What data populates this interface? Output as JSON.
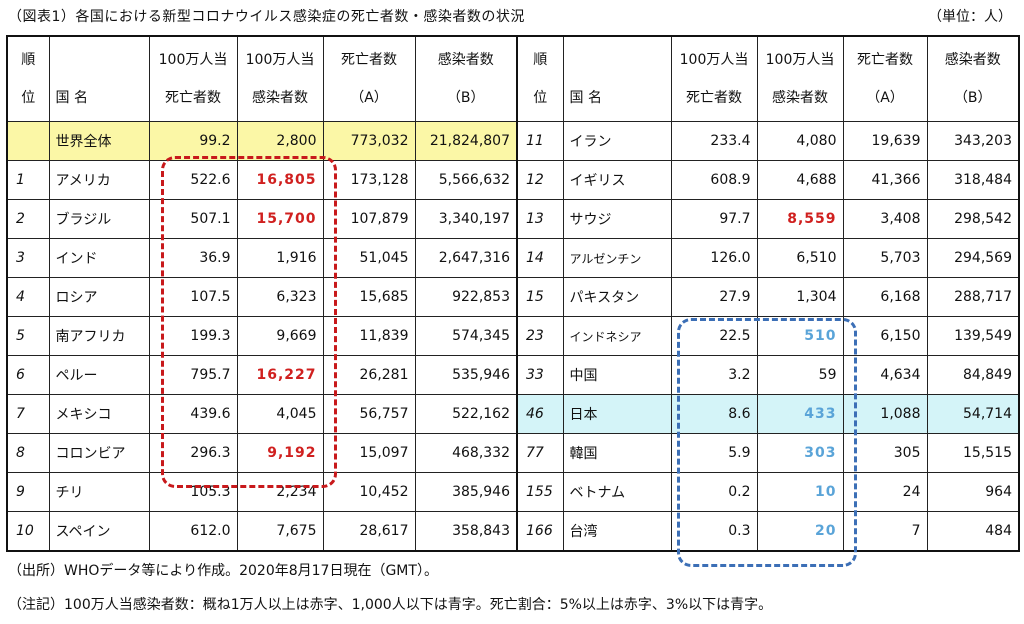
{
  "title": "（図表1）各国における新型コロナウイルス感染症の死亡者数・感染者数の状況",
  "unit": "（単位：人）",
  "headers": {
    "rank": [
      "順",
      "位"
    ],
    "country": "国  名",
    "deaths_per_million": [
      "100万人当",
      "死亡者数"
    ],
    "cases_per_million": [
      "100万人当",
      "感染者数"
    ],
    "deaths": [
      "死亡者数",
      "（A）"
    ],
    "cases": [
      "感染者数",
      "（B）"
    ]
  },
  "colors": {
    "red_text": "#d0201f",
    "blue_text": "#5aa4d8",
    "world_bg": "#fbf7a6",
    "japan_bg": "#d4f4f8"
  },
  "left_rows": [
    {
      "rank": "",
      "country": "世界全体",
      "dpm": "99.2",
      "cpm": "2,800",
      "deaths": "773,032",
      "cases": "21,824,807",
      "cpm_color": "",
      "highlight": "world"
    },
    {
      "rank": "1",
      "country": "アメリカ",
      "dpm": "522.6",
      "cpm": "16,805",
      "deaths": "173,128",
      "cases": "5,566,632",
      "cpm_color": "red",
      "highlight": ""
    },
    {
      "rank": "2",
      "country": "ブラジル",
      "dpm": "507.1",
      "cpm": "15,700",
      "deaths": "107,879",
      "cases": "3,340,197",
      "cpm_color": "red",
      "highlight": ""
    },
    {
      "rank": "3",
      "country": "インド",
      "dpm": "36.9",
      "cpm": "1,916",
      "deaths": "51,045",
      "cases": "2,647,316",
      "cpm_color": "",
      "highlight": ""
    },
    {
      "rank": "4",
      "country": "ロシア",
      "dpm": "107.5",
      "cpm": "6,323",
      "deaths": "15,685",
      "cases": "922,853",
      "cpm_color": "",
      "highlight": ""
    },
    {
      "rank": "5",
      "country": "南アフリカ",
      "dpm": "199.3",
      "cpm": "9,669",
      "deaths": "11,839",
      "cases": "574,345",
      "cpm_color": "",
      "highlight": ""
    },
    {
      "rank": "6",
      "country": "ペルー",
      "dpm": "795.7",
      "cpm": "16,227",
      "deaths": "26,281",
      "cases": "535,946",
      "cpm_color": "red",
      "highlight": ""
    },
    {
      "rank": "7",
      "country": "メキシコ",
      "dpm": "439.6",
      "cpm": "4,045",
      "deaths": "56,757",
      "cases": "522,162",
      "cpm_color": "",
      "highlight": ""
    },
    {
      "rank": "8",
      "country": "コロンビア",
      "dpm": "296.3",
      "cpm": "9,192",
      "deaths": "15,097",
      "cases": "468,332",
      "cpm_color": "red",
      "highlight": ""
    },
    {
      "rank": "9",
      "country": "チリ",
      "dpm": "105.3",
      "cpm": "2,234",
      "deaths": "10,452",
      "cases": "385,946",
      "cpm_color": "",
      "highlight": ""
    },
    {
      "rank": "10",
      "country": "スペイン",
      "dpm": "612.0",
      "cpm": "7,675",
      "deaths": "28,617",
      "cases": "358,843",
      "cpm_color": "",
      "highlight": ""
    }
  ],
  "right_rows": [
    {
      "rank": "11",
      "country": "イラン",
      "dpm": "233.4",
      "cpm": "4,080",
      "deaths": "19,639",
      "cases": "343,203",
      "cpm_color": "",
      "highlight": ""
    },
    {
      "rank": "12",
      "country": "イギリス",
      "dpm": "608.9",
      "cpm": "4,688",
      "deaths": "41,366",
      "cases": "318,484",
      "cpm_color": "",
      "highlight": ""
    },
    {
      "rank": "13",
      "country": "サウジ",
      "dpm": "97.7",
      "cpm": "8,559",
      "deaths": "3,408",
      "cases": "298,542",
      "cpm_color": "red",
      "highlight": ""
    },
    {
      "rank": "14",
      "country": "アルゼンチン",
      "dpm": "126.0",
      "cpm": "6,510",
      "deaths": "5,703",
      "cases": "294,569",
      "cpm_color": "",
      "highlight": "",
      "small": true
    },
    {
      "rank": "15",
      "country": "パキスタン",
      "dpm": "27.9",
      "cpm": "1,304",
      "deaths": "6,168",
      "cases": "288,717",
      "cpm_color": "",
      "highlight": ""
    },
    {
      "rank": "23",
      "country": "インドネシア",
      "dpm": "22.5",
      "cpm": "510",
      "deaths": "6,150",
      "cases": "139,549",
      "cpm_color": "blue",
      "highlight": "",
      "small": true
    },
    {
      "rank": "33",
      "country": "中国",
      "dpm": "3.2",
      "cpm": "59",
      "deaths": "4,634",
      "cases": "84,849",
      "cpm_color": "",
      "highlight": ""
    },
    {
      "rank": "46",
      "country": "日本",
      "dpm": "8.6",
      "cpm": "433",
      "deaths": "1,088",
      "cases": "54,714",
      "cpm_color": "blue",
      "highlight": "japan"
    },
    {
      "rank": "77",
      "country": "韓国",
      "dpm": "5.9",
      "cpm": "303",
      "deaths": "305",
      "cases": "15,515",
      "cpm_color": "blue",
      "highlight": ""
    },
    {
      "rank": "155",
      "country": "ベトナム",
      "dpm": "0.2",
      "cpm": "10",
      "deaths": "24",
      "cases": "964",
      "cpm_color": "blue",
      "highlight": ""
    },
    {
      "rank": "166",
      "country": "台湾",
      "dpm": "0.3",
      "cpm": "20",
      "deaths": "7",
      "cases": "484",
      "cpm_color": "blue",
      "highlight": ""
    }
  ],
  "source": "（出所）WHOデータ等により作成。2020年8月17日現在（GMT）。",
  "note": "（注記）100万人当感染者数：概ね1万人以上は赤字、1,000人以下は青字。死亡割合：5%以上は赤字、3%以下は青字。"
}
